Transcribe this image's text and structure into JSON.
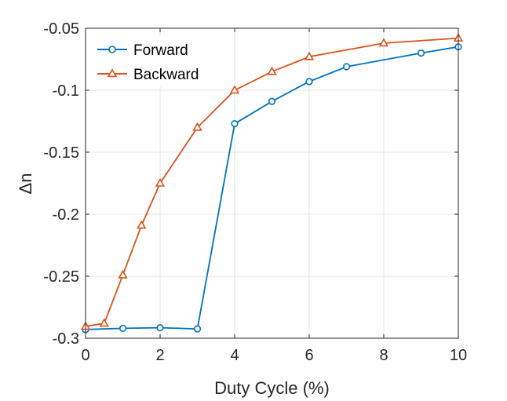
{
  "chart_data": {
    "type": "line",
    "title": "",
    "xlabel": "Duty Cycle (%)",
    "ylabel": "Δn",
    "xlim": [
      0,
      10
    ],
    "ylim": [
      -0.3,
      -0.05
    ],
    "xticks": [
      0,
      2,
      4,
      6,
      8,
      10
    ],
    "xtick_labels": [
      "0",
      "2",
      "4",
      "6",
      "8",
      "10"
    ],
    "yticks": [
      -0.3,
      -0.25,
      -0.2,
      -0.15,
      -0.1,
      -0.05
    ],
    "ytick_labels": [
      "-0.3",
      "-0.25",
      "-0.2",
      "-0.15",
      "-0.1",
      "-0.05"
    ],
    "grid": true,
    "legend_position": "top-left",
    "series": [
      {
        "name": "Forward",
        "color": "#0072BD",
        "marker": "circle",
        "x": [
          0,
          1,
          2,
          3,
          4,
          5,
          6,
          7,
          9,
          10
        ],
        "y": [
          -0.293,
          -0.292,
          -0.2915,
          -0.2925,
          -0.127,
          -0.109,
          -0.093,
          -0.081,
          -0.07,
          -0.065
        ]
      },
      {
        "name": "Backward",
        "color": "#D95319",
        "marker": "triangle",
        "x": [
          0,
          0.5,
          1,
          1.5,
          2,
          3,
          4,
          5,
          6,
          8,
          10
        ],
        "y": [
          -0.2905,
          -0.288,
          -0.249,
          -0.209,
          -0.175,
          -0.13,
          -0.1,
          -0.085,
          -0.073,
          -0.062,
          -0.058
        ]
      }
    ]
  }
}
